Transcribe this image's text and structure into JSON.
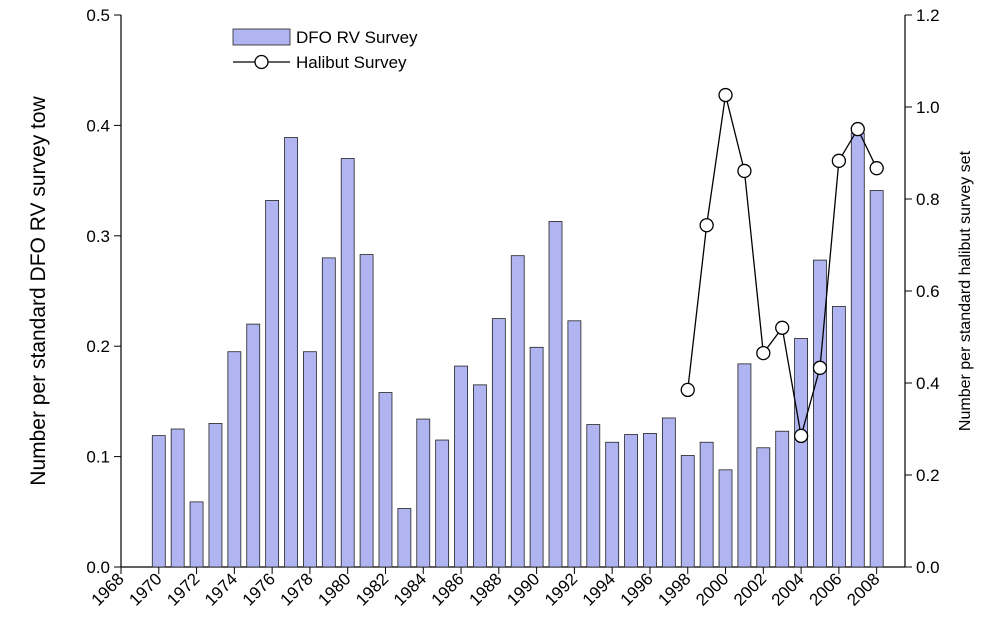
{
  "chart_data": {
    "type": "bar-line",
    "x": [
      1970,
      1971,
      1972,
      1973,
      1974,
      1975,
      1976,
      1977,
      1978,
      1979,
      1980,
      1981,
      1982,
      1983,
      1984,
      1985,
      1986,
      1987,
      1988,
      1989,
      1990,
      1991,
      1992,
      1993,
      1994,
      1995,
      1996,
      1997,
      1998,
      1999,
      2000,
      2001,
      2002,
      2003,
      2004,
      2005,
      2006,
      2007,
      2008
    ],
    "series": [
      {
        "name": "DFO RV Survey",
        "type": "bar",
        "color": "#b0b4f0",
        "values": [
          0.119,
          0.125,
          0.059,
          0.13,
          0.195,
          0.22,
          0.332,
          0.389,
          0.195,
          0.28,
          0.37,
          0.283,
          0.158,
          0.053,
          0.134,
          0.115,
          0.182,
          0.165,
          0.225,
          0.282,
          0.199,
          0.313,
          0.223,
          0.129,
          0.113,
          0.12,
          0.121,
          0.135,
          0.101,
          0.113,
          0.088,
          0.184,
          0.108,
          0.123,
          0.207,
          0.278,
          0.236,
          0.393,
          0.341
        ]
      },
      {
        "name": "Halibut Survey",
        "type": "line",
        "axis": "y2",
        "color": "#000000",
        "values": [
          null,
          null,
          null,
          null,
          null,
          null,
          null,
          null,
          null,
          null,
          null,
          null,
          null,
          null,
          null,
          null,
          null,
          null,
          null,
          null,
          null,
          null,
          null,
          null,
          null,
          null,
          null,
          null,
          0.385,
          0.743,
          1.026,
          0.861,
          0.465,
          0.52,
          0.285,
          0.433,
          0.883,
          0.952,
          0.867
        ]
      }
    ],
    "y_label": "Number per standard DFO RV survey tow",
    "y2_label": "Number per standard halibut survey set",
    "xlim": [
      1968,
      2009.5
    ],
    "xticks": [
      1968,
      1970,
      1972,
      1974,
      1976,
      1978,
      1980,
      1982,
      1984,
      1986,
      1988,
      1990,
      1992,
      1994,
      1996,
      1998,
      2000,
      2002,
      2004,
      2006,
      2008
    ],
    "ylim": [
      0,
      0.5
    ],
    "yticks": [
      {
        "value": 0,
        "label": "0.0"
      },
      0.1,
      0.2,
      0.3,
      0.4,
      0.5
    ],
    "y2lim": [
      0,
      1.2
    ],
    "y2ticks": [
      {
        "value": 0,
        "label": "0.0"
      },
      0.2,
      0.4,
      0.6,
      0.8,
      {
        "value": 1,
        "label": "1.0"
      },
      1.2
    ],
    "legend": "upper-left"
  }
}
